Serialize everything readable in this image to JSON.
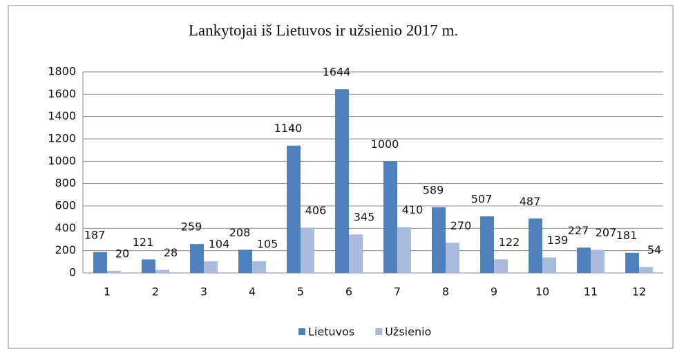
{
  "chart_data": {
    "type": "bar",
    "title": "Lankytojai iš Lietuvos ir užsienio 2017 m.",
    "categories": [
      "1",
      "2",
      "3",
      "4",
      "5",
      "6",
      "7",
      "8",
      "9",
      "10",
      "11",
      "12"
    ],
    "series": [
      {
        "name": "Lietuvos",
        "color": "#4f81bd",
        "values": [
          187,
          121,
          259,
          208,
          1140,
          1644,
          1000,
          589,
          507,
          487,
          227,
          181
        ]
      },
      {
        "name": "Užsienio",
        "color": "#aabbdd",
        "values": [
          20,
          28,
          104,
          105,
          406,
          345,
          410,
          270,
          122,
          139,
          207,
          54
        ]
      }
    ],
    "ylim": [
      0,
      1800
    ],
    "yticks": [
      0,
      200,
      400,
      600,
      800,
      1000,
      1200,
      1400,
      1600,
      1800
    ],
    "grid": true,
    "legend": "bottom"
  }
}
